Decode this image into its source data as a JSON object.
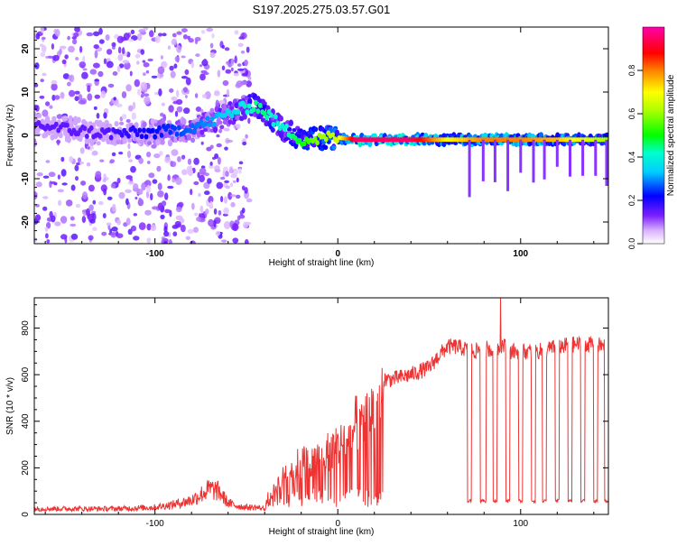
{
  "title": "S197.2025.275.03.57.G01",
  "chart_data": [
    {
      "type": "heatmap",
      "name": "spectrogram",
      "xlabel": "Height of straight line (km)",
      "ylabel": "Frequency (Hz)",
      "xlim": [
        -166,
        148
      ],
      "ylim": [
        -25,
        25
      ],
      "xticks": [
        -100,
        0,
        100
      ],
      "yticks": [
        20,
        10,
        0,
        -10,
        -20
      ],
      "colorbar": {
        "label": "Normalized spectral amplitude",
        "range": [
          0.0,
          1.0
        ],
        "ticks": [
          0.0,
          0.2,
          0.4,
          0.6,
          0.8
        ],
        "colors": [
          "#ffffff",
          "#cc99ff",
          "#6a00ff",
          "#0000ff",
          "#00ffff",
          "#00ff00",
          "#ffff00",
          "#ff8000",
          "#ff0000",
          "#ff00ff"
        ]
      },
      "ridge": {
        "heights": [
          -166,
          -150,
          -130,
          -110,
          -90,
          -70,
          -60,
          -50,
          -45,
          -40,
          -35,
          -30,
          -25,
          -20,
          -15,
          -10,
          -5,
          0,
          10,
          20,
          40,
          60,
          80,
          100,
          120,
          148
        ],
        "frequency": [
          2.5,
          1.5,
          0.5,
          0.5,
          1.0,
          3.0,
          5.0,
          6.5,
          7.0,
          5.5,
          3.5,
          1.5,
          0.5,
          -1.0,
          -1.0,
          -0.8,
          -0.5,
          -0.5,
          -1.0,
          -1.0,
          -1.0,
          -1.0,
          -1.0,
          -1.0,
          -1.0,
          -1.0
        ],
        "amplitude": [
          0.15,
          0.15,
          0.15,
          0.2,
          0.25,
          0.3,
          0.35,
          0.4,
          0.45,
          0.45,
          0.4,
          0.4,
          0.45,
          0.5,
          0.55,
          0.6,
          0.62,
          0.65,
          0.95,
          0.95,
          0.95,
          0.7,
          0.8,
          0.8,
          0.75,
          0.6
        ]
      },
      "note": "Scattered low-amplitude noise (0.05-0.2) at heights below -50 km"
    },
    {
      "type": "line",
      "name": "snr",
      "xlabel": "Height of straight line (km)",
      "ylabel": "SNR (10 * v/v)",
      "xlim": [
        -166,
        148
      ],
      "ylim": [
        0,
        930
      ],
      "xticks": [
        -100,
        0,
        100
      ],
      "yticks": [
        0,
        200,
        400,
        600,
        800
      ],
      "series": [
        {
          "name": "SNR",
          "color": "#ee3333",
          "envelope": {
            "heights": [
              -166,
              -120,
              -100,
              -90,
              -80,
              -75,
              -70,
              -65,
              -60,
              -55,
              -50,
              -45,
              -40,
              -35,
              -30,
              -25,
              -20,
              -15,
              -10,
              -5,
              0,
              5,
              10,
              15,
              20,
              25,
              30,
              40,
              50,
              55,
              60,
              65,
              70,
              75,
              80,
              85,
              90,
              95,
              100,
              110,
              120,
              130,
              140,
              148
            ],
            "values": [
              20,
              20,
              25,
              35,
              50,
              70,
              90,
              80,
              40,
              30,
              25,
              25,
              20,
              120,
              200,
              250,
              270,
              280,
              300,
              330,
              350,
              400,
              470,
              500,
              550,
              580,
              580,
              600,
              630,
              680,
              720,
              720,
              710,
              700,
              720,
              700,
              730,
              700,
              700,
              700,
              720,
              730,
              730,
              720
            ]
          },
          "peak": {
            "height": 89,
            "value": 930
          },
          "dips": [
            {
              "from": 71,
              "to": 73,
              "value": 50
            },
            {
              "from": 78,
              "to": 81,
              "value": 50
            },
            {
              "from": 85,
              "to": 87,
              "value": 50
            },
            {
              "from": 92,
              "to": 94,
              "value": 50
            },
            {
              "from": 99,
              "to": 101,
              "value": 50
            },
            {
              "from": 106,
              "to": 108,
              "value": 50
            },
            {
              "from": 112,
              "to": 114,
              "value": 50
            },
            {
              "from": 119,
              "to": 121,
              "value": 50
            },
            {
              "from": 126,
              "to": 128,
              "value": 50
            },
            {
              "from": 133,
              "to": 135,
              "value": 50
            },
            {
              "from": 140,
              "to": 142,
              "value": 50
            },
            {
              "from": 146,
              "to": 148,
              "value": 50
            }
          ]
        }
      ]
    }
  ]
}
